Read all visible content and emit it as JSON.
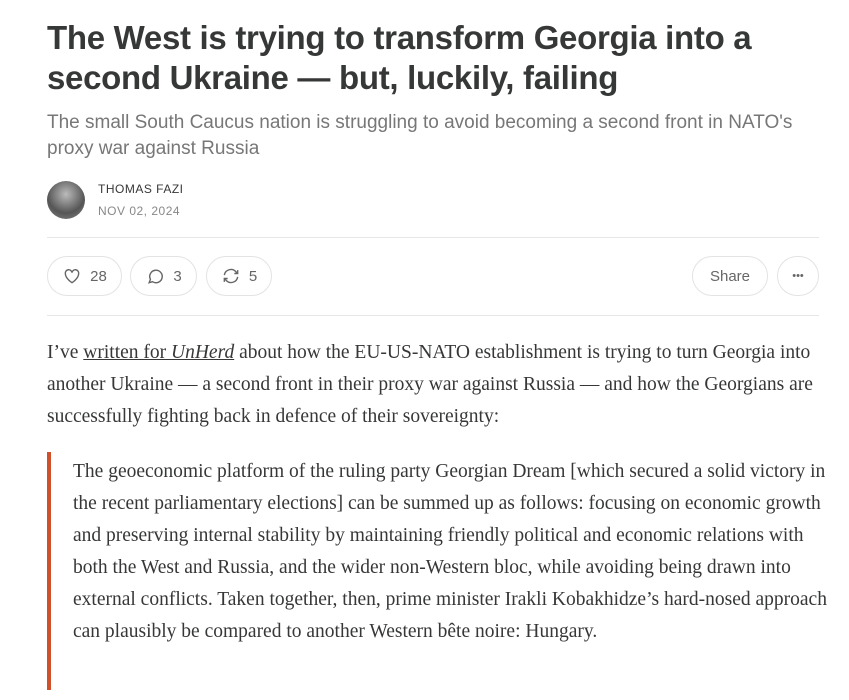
{
  "post": {
    "title": "The West is trying to transform Georgia into a second Ukraine — but, luckily, failing",
    "subtitle": "The small South Caucus nation is struggling to avoid becoming a second front in NATO's proxy war against Russia",
    "author": "THOMAS FAZI",
    "date": "NOV 02, 2024"
  },
  "actions": {
    "likes": "28",
    "comments": "3",
    "restacks": "5",
    "share": "Share",
    "more": "•••"
  },
  "body": {
    "intro_before": "I’ve ",
    "link_text": "written for ",
    "link_italic": "UnHerd",
    "intro_after": " about how the EU-US-NATO establishment is trying to turn Georgia into another Ukraine — a second front in their proxy war against Russia — and how the Georgians are successfully fighting back in defence of their sovereignty:",
    "quote": "The geoeconomic platform of the ruling party Georgian Dream [which secured a solid victory in the recent parliamentary elections] can be summed up as follows: focusing on economic growth and preserving internal stability by maintaining friendly political and economic relations with both the West and Russia, and the wider non-Western bloc, while avoiding being drawn into external conflicts. Taken together, then, prime minister Irakli Kobakhidze’s hard-nosed approach can plausibly be compared to another Western bête noire: Hungary."
  },
  "colors": {
    "accent": "#d0502b"
  }
}
